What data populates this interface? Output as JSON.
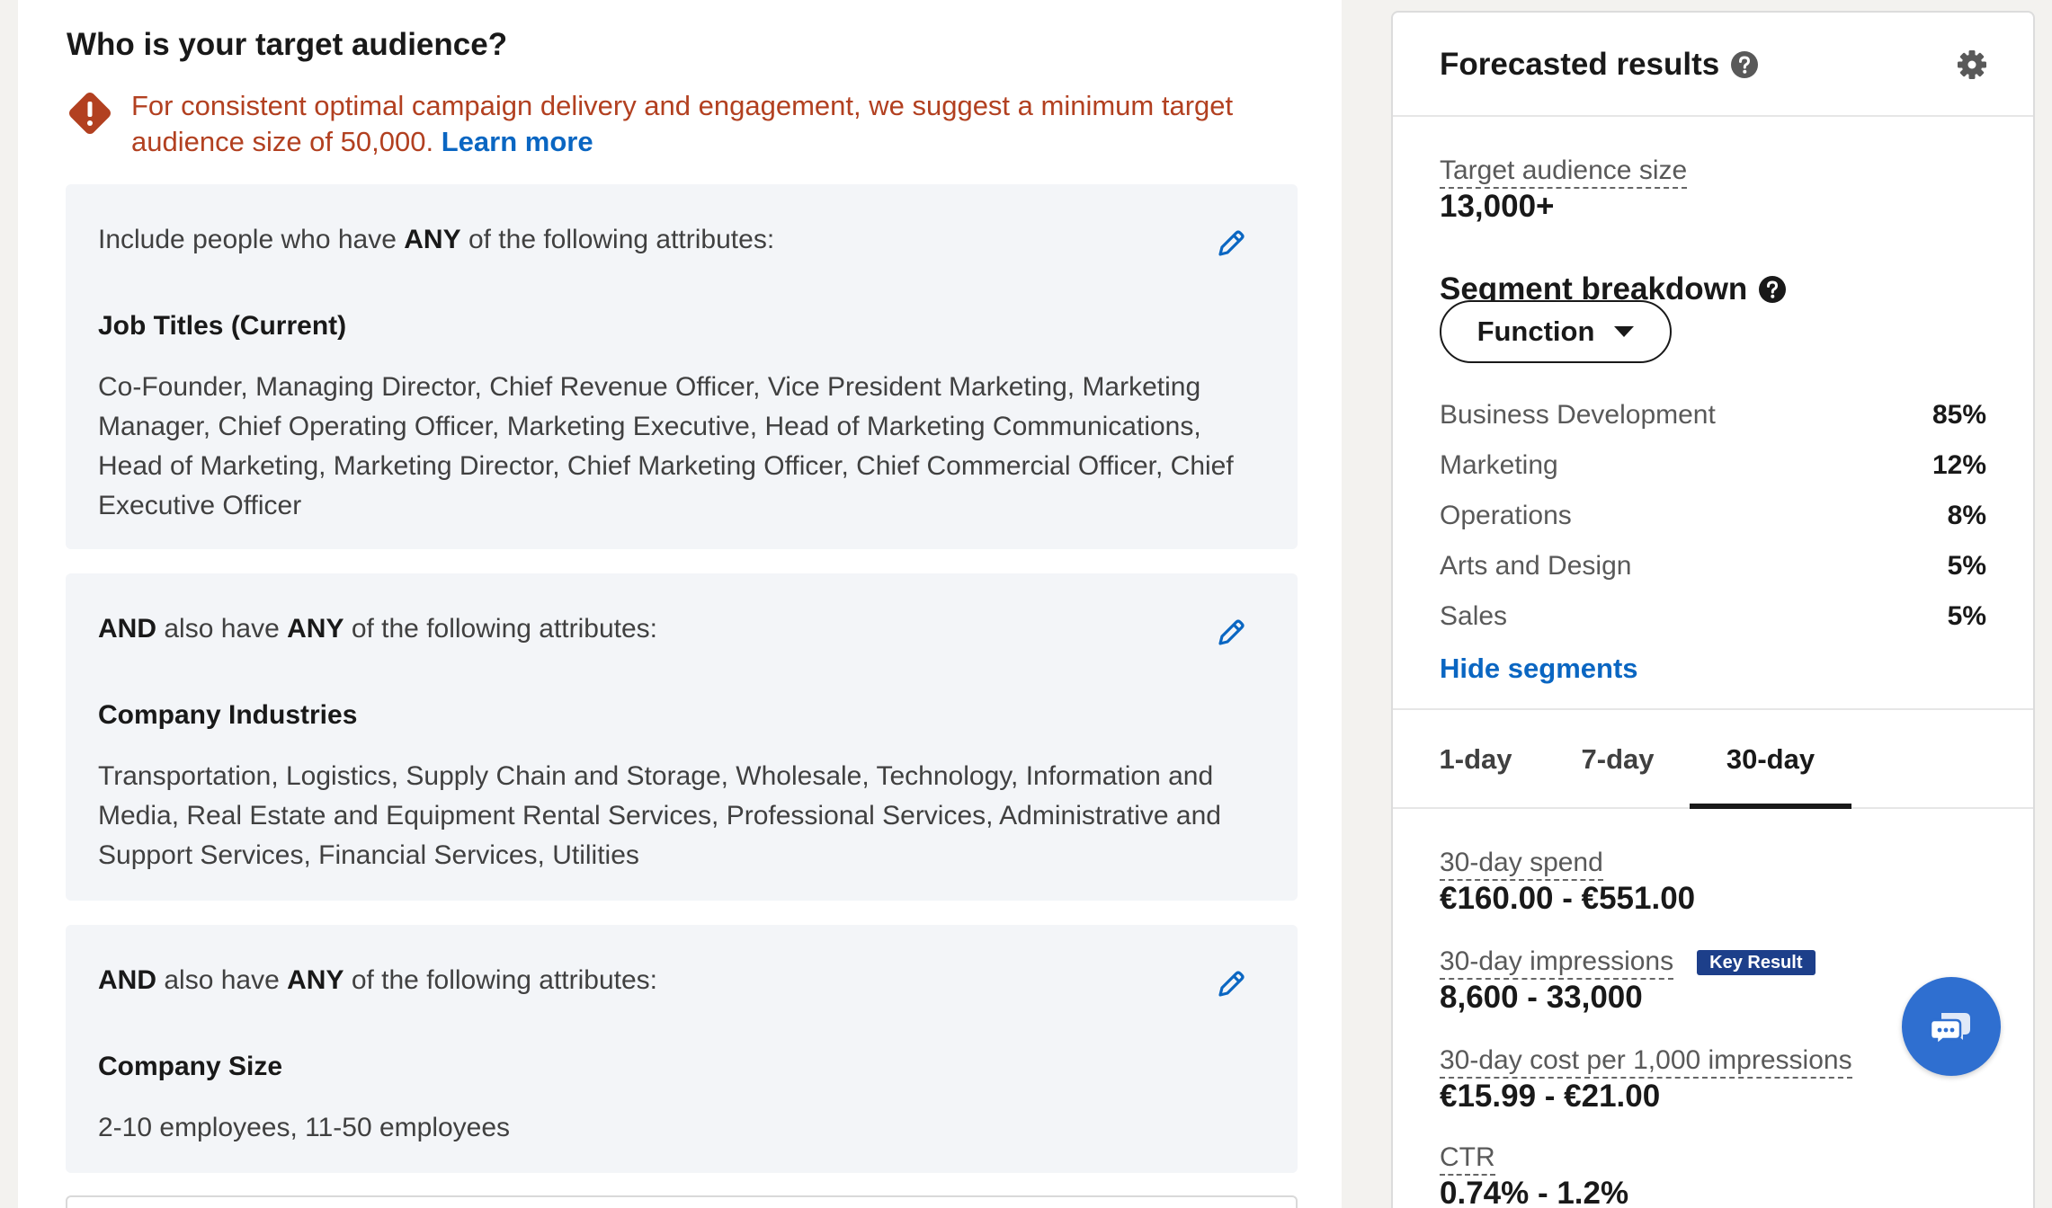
{
  "audience": {
    "title": "Who is your target audience?",
    "warning_text": "For consistent optimal campaign delivery and engagement, we suggest a minimum target audience size of 50,000.",
    "warning_link": "Learn more"
  },
  "criteria": [
    {
      "head_prefix": "Include people who have",
      "head_any": "ANY",
      "head_suffix": "of the following attributes:",
      "category": "Job Titles (Current)",
      "values": "Co-Founder, Managing Director, Chief Revenue Officer, Vice President Marketing, Marketing Manager, Chief Operating Officer, Marketing Executive, Head of Marketing Communications, Head of Marketing, Marketing Director, Chief Marketing Officer, Chief Commercial Officer, Chief Executive Officer"
    },
    {
      "head_and": "AND",
      "head_prefix": "also have",
      "head_any": "ANY",
      "head_suffix": "of the following attributes:",
      "category": "Company Industries",
      "values": "Transportation, Logistics, Supply Chain and Storage, Wholesale, Technology, Information and Media, Real Estate and Equipment Rental Services, Professional Services, Administrative and Support Services, Financial Services, Utilities"
    },
    {
      "head_and": "AND",
      "head_prefix": "also have",
      "head_any": "ANY",
      "head_suffix": "of the following attributes:",
      "category": "Company Size",
      "values": "2-10 employees, 11-50 employees"
    }
  ],
  "forecast": {
    "title": "Forecasted results",
    "audience_size_label": "Target audience size",
    "audience_size_value": "13,000+",
    "segment_title": "Segment breakdown",
    "segment_dropdown": "Function",
    "segments": [
      {
        "name": "Business Development",
        "pct": "85%"
      },
      {
        "name": "Marketing",
        "pct": "12%"
      },
      {
        "name": "Operations",
        "pct": "8%"
      },
      {
        "name": "Arts and Design",
        "pct": "5%"
      },
      {
        "name": "Sales",
        "pct": "5%"
      }
    ],
    "hide_segments": "Hide segments",
    "tabs": [
      "1-day",
      "7-day",
      "30-day"
    ],
    "active_tab": "30-day",
    "spend_label": "30-day spend",
    "spend_value": "€160.00 - €551.00",
    "impressions_label": "30-day impressions",
    "impressions_badge": "Key Result",
    "impressions_value": "8,600 - 33,000",
    "cpm_label": "30-day cost per 1,000 impressions",
    "cpm_value": "€15.99 - €21.00",
    "ctr_label": "CTR",
    "ctr_value": "0.74% - 1.2%"
  },
  "colors": {
    "warning": "#b24020",
    "link": "#0a66c2",
    "badge": "#1d3f8a",
    "chat": "#2f6fd0"
  }
}
